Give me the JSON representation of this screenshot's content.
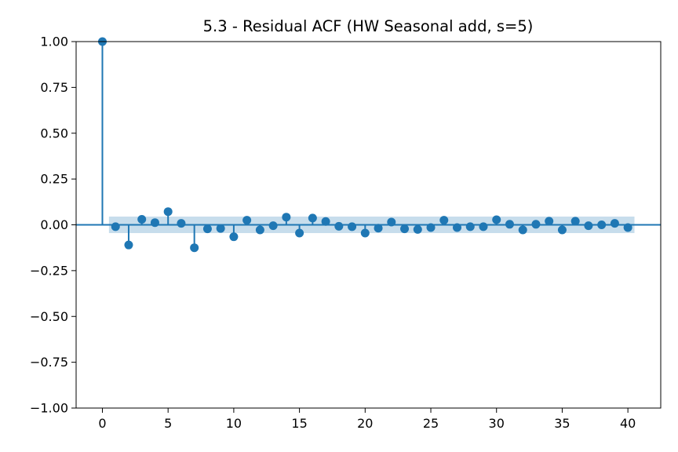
{
  "chart_data": {
    "type": "stem",
    "title": "5.3 - Residual ACF (HW Seasonal add, s=5)",
    "xlabel": "",
    "ylabel": "",
    "xlim": [
      -2,
      42.5
    ],
    "ylim": [
      -1.0,
      1.0
    ],
    "x_ticks": [
      0,
      5,
      10,
      15,
      20,
      25,
      30,
      35,
      40
    ],
    "x_tick_labels": [
      "0",
      "5",
      "10",
      "15",
      "20",
      "25",
      "30",
      "35",
      "40"
    ],
    "y_ticks": [
      1.0,
      0.75,
      0.5,
      0.25,
      0.0,
      -0.25,
      -0.5,
      -0.75,
      -1.0
    ],
    "y_tick_labels": [
      "1.00",
      "0.75",
      "0.50",
      "0.25",
      "0.00",
      "−0.25",
      "−0.50",
      "−0.75",
      "−1.00"
    ],
    "confidence_band": {
      "x_start": 0.5,
      "x_end": 40.5,
      "lower": -0.045,
      "upper": 0.045
    },
    "lags": [
      0,
      1,
      2,
      3,
      4,
      5,
      6,
      7,
      8,
      9,
      10,
      11,
      12,
      13,
      14,
      15,
      16,
      17,
      18,
      19,
      20,
      21,
      22,
      23,
      24,
      25,
      26,
      27,
      28,
      29,
      30,
      31,
      32,
      33,
      34,
      35,
      36,
      37,
      38,
      39,
      40
    ],
    "values": [
      1.0,
      -0.01,
      -0.11,
      0.03,
      0.012,
      0.072,
      0.008,
      -0.125,
      -0.022,
      -0.02,
      -0.065,
      0.025,
      -0.028,
      -0.005,
      0.042,
      -0.045,
      0.037,
      0.018,
      -0.008,
      -0.01,
      -0.045,
      -0.018,
      0.015,
      -0.022,
      -0.025,
      -0.015,
      0.025,
      -0.015,
      -0.01,
      -0.01,
      0.028,
      0.003,
      -0.028,
      0.003,
      0.02,
      -0.028,
      0.02,
      -0.005,
      0.0,
      0.008,
      -0.015
    ],
    "colors": {
      "series": "#1f77b4",
      "band": "#1f77b4",
      "axis": "#000000"
    },
    "grid": false
  }
}
